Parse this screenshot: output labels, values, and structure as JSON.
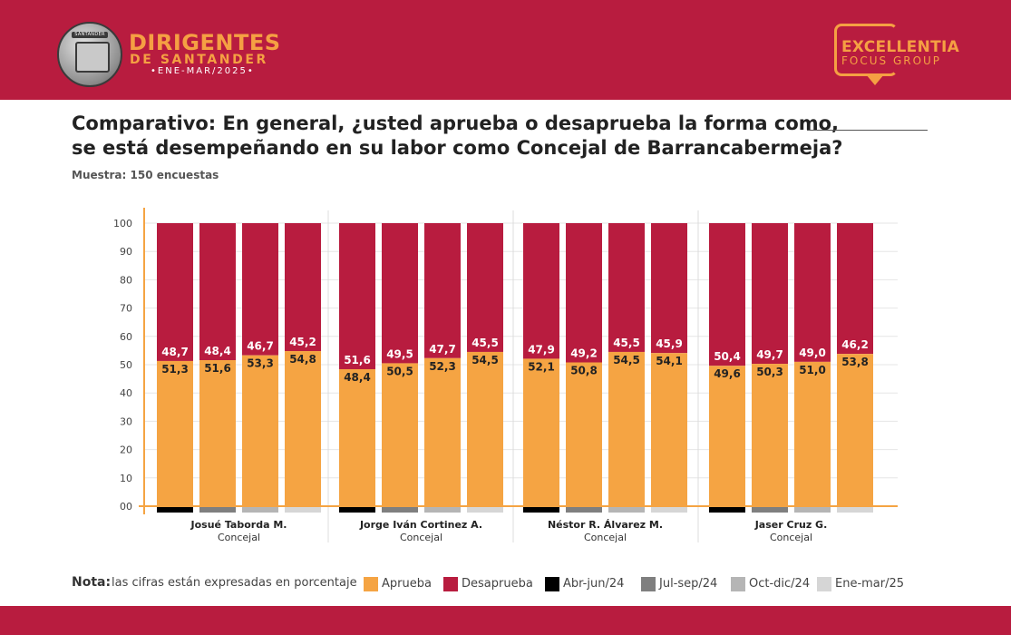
{
  "header": {
    "seal_text": "SANTANDER",
    "brand_title": "DIRIGENTES",
    "brand_subtitle": "DE SANTANDER",
    "brand_period": "•ENE-MAR/2025•",
    "logo_title": "EXCELLENTIA",
    "logo_subtitle": "FOCUS GROUP",
    "colors": {
      "band": "#b81c3f",
      "accent": "#f5a043"
    }
  },
  "question": {
    "line1": "Comparativo: En general, ¿usted aprueba o desaprueba la forma como,",
    "line2": "se está desempeñando en su labor como Concejal de Barrancabermeja?",
    "sample": "Muestra: 150 encuestas"
  },
  "chart_data": {
    "type": "bar",
    "stacked": true,
    "ylim": [
      0,
      100
    ],
    "yticks": [
      "00",
      "10",
      "20",
      "30",
      "40",
      "50",
      "60",
      "70",
      "80",
      "90",
      "100"
    ],
    "groups": [
      {
        "name": "Josué Taborda M.",
        "role": "Concejal",
        "aprueba": [
          51.3,
          51.6,
          53.3,
          54.8
        ],
        "desaprueba": [
          48.7,
          48.4,
          46.7,
          45.2
        ]
      },
      {
        "name": "Jorge Iván Cortinez A.",
        "role": "Concejal",
        "aprueba": [
          48.4,
          50.5,
          52.3,
          54.5
        ],
        "desaprueba": [
          51.6,
          49.5,
          47.7,
          45.5
        ]
      },
      {
        "name": "Néstor R. Álvarez M.",
        "role": "Concejal",
        "aprueba": [
          52.1,
          50.8,
          54.5,
          54.1
        ],
        "desaprueba": [
          47.9,
          49.2,
          45.5,
          45.9
        ]
      },
      {
        "name": "Jaser Cruz G.",
        "role": "Concejal",
        "aprueba": [
          49.6,
          50.3,
          51.0,
          53.8
        ],
        "desaprueba": [
          50.4,
          49.7,
          49.0,
          46.2
        ]
      }
    ],
    "series": [
      {
        "name": "Aprueba",
        "color": "#f5a443"
      },
      {
        "name": "Desaprueba",
        "color": "#b81c3f"
      }
    ],
    "periods": [
      {
        "name": "Abr-jun/24",
        "color": "#000000"
      },
      {
        "name": "Jul-sep/24",
        "color": "#7f7f7f"
      },
      {
        "name": "Oct-dic/24",
        "color": "#b5b5b5"
      },
      {
        "name": "Ene-mar/25",
        "color": "#d6d6d6"
      }
    ],
    "grid": true,
    "legend_position": "bottom"
  },
  "note": {
    "label": "Nota:",
    "text": "las cifras están expresadas en porcentaje"
  }
}
